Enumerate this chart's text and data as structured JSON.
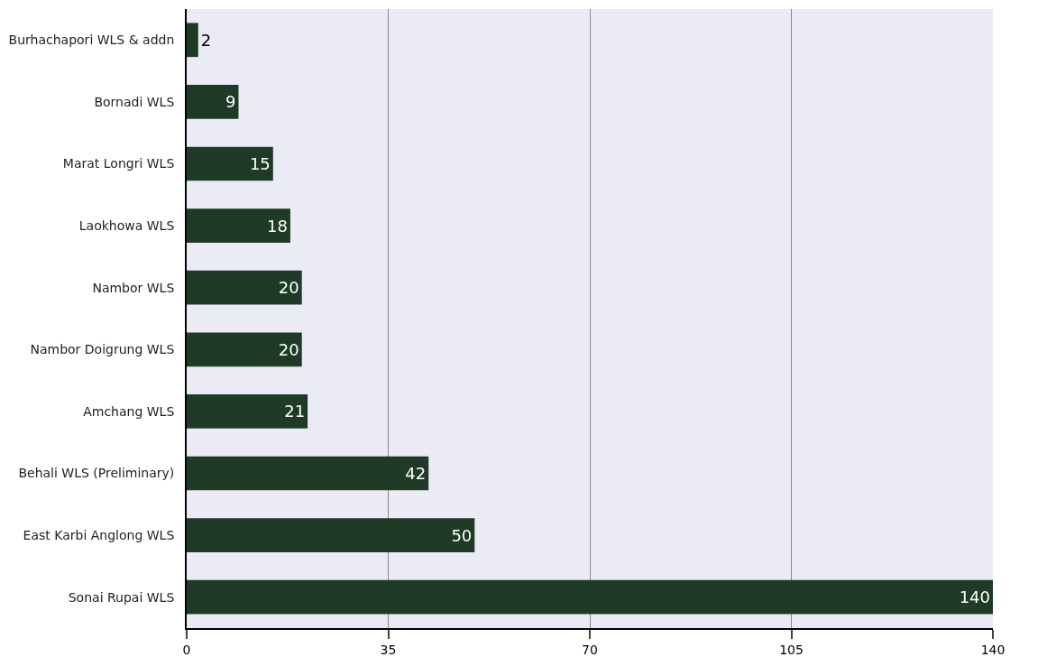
{
  "chart_data": {
    "type": "bar",
    "orientation": "horizontal",
    "categories": [
      "Burhachapori WLS & addn",
      "Bornadi WLS",
      "Marat Longri WLS",
      "Laokhowa WLS",
      "Nambor WLS",
      "Nambor Doigrung WLS",
      "Amchang WLS",
      "Behali WLS (Preliminary)",
      "East Karbi Anglong WLS",
      "Sonai Rupai WLS"
    ],
    "values": [
      2,
      9,
      15,
      18,
      20,
      20,
      21,
      42,
      50,
      140
    ],
    "color": "#1f3a26",
    "xlim": [
      0,
      140
    ],
    "xticks": [
      0,
      35,
      70,
      105,
      140
    ],
    "grid": "x",
    "data_labels": true
  }
}
